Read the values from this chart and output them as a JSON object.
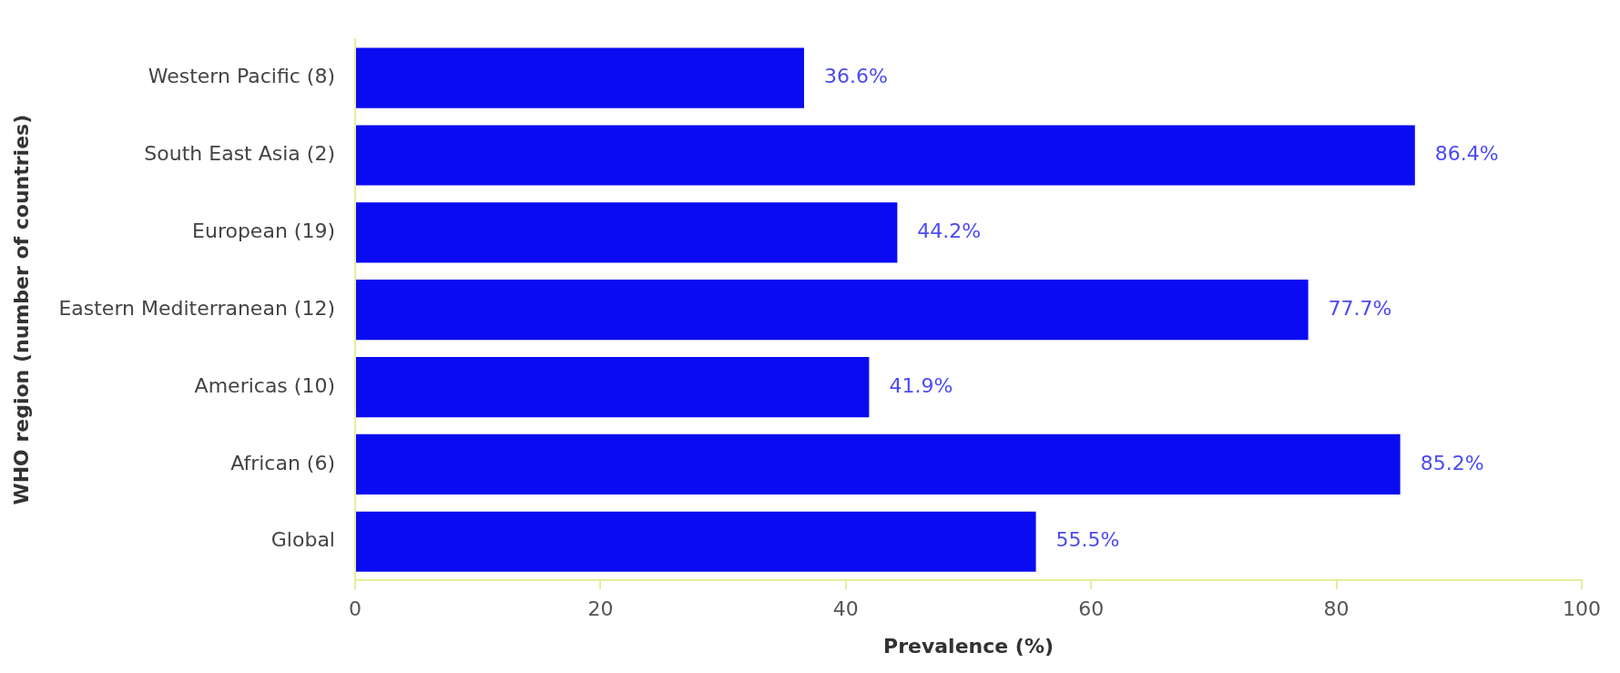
{
  "chart_data": {
    "type": "bar",
    "orientation": "horizontal",
    "xlabel": "Prevalence (%)",
    "ylabel": "WHO region (number of countries)",
    "categories": [
      "Western Pacific (8)",
      "South East Asia (2)",
      "European (19)",
      "Eastern Mediterranean (12)",
      "Americas (10)",
      "African (6)",
      "Global"
    ],
    "values": [
      36.6,
      86.4,
      44.2,
      77.7,
      41.9,
      85.2,
      55.5
    ],
    "color": "#0b0bf2",
    "xlim": [
      0,
      100
    ],
    "xticks": [
      0,
      20,
      40,
      60,
      80,
      100
    ],
    "value_labels": [
      "36.6%",
      "86.4%",
      "44.2%",
      "77.7%",
      "41.9%",
      "85.2%",
      "55.5%"
    ],
    "grid": false,
    "legend": false
  }
}
